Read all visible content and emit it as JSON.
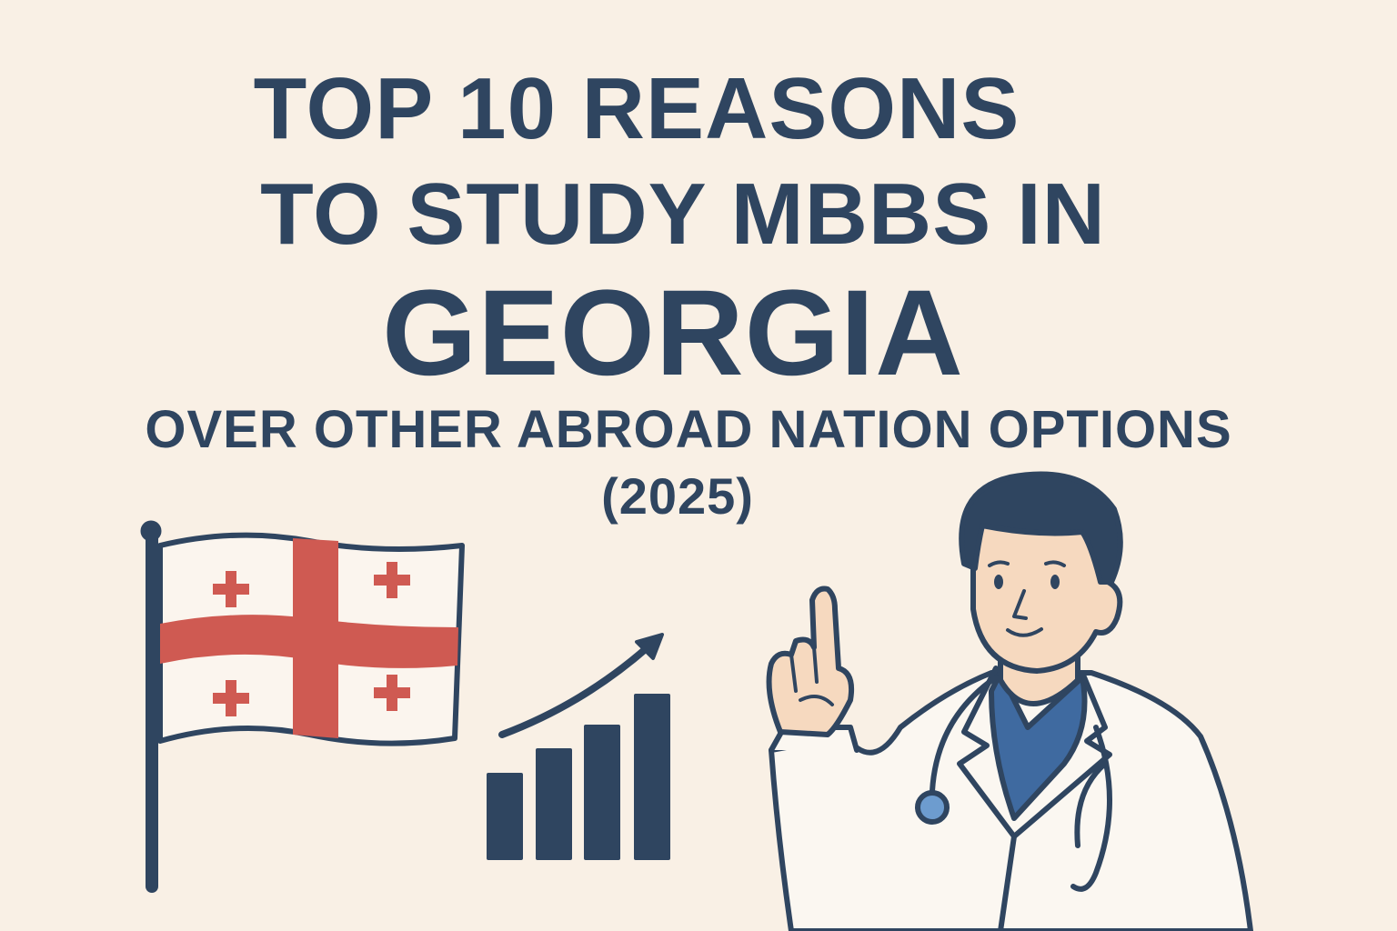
{
  "title": {
    "line1": "TOP 10 REASONS",
    "line2": "TO STUDY MBBS IN",
    "line3": "GEORGIA",
    "line4": "OVER OTHER ABROAD NATION OPTIONS",
    "line5": "(2025)"
  },
  "illustrations": {
    "flag": "georgia-flag",
    "chart": "rising-bar-chart-with-arrow",
    "person": "doctor-pointing-up"
  },
  "colors": {
    "background": "#f9f0e5",
    "text": "#2f4560",
    "flag_red": "#cf5a52",
    "scrubs": "#3f6aa0",
    "skin": "#f6d9bf"
  }
}
